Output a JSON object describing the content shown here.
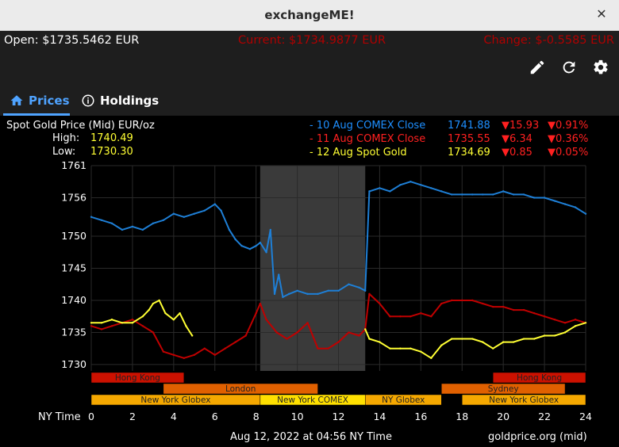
{
  "window": {
    "title": "exchangeME!",
    "close_glyph": "✕"
  },
  "summary": {
    "open": "Open: $1735.5462 EUR",
    "current": "Current: $1734.9877 EUR",
    "change": "Change: $-0.5585 EUR"
  },
  "toolbar": {
    "icons": [
      "edit-icon",
      "refresh-icon",
      "settings-icon"
    ]
  },
  "tabs": [
    {
      "label": "Prices",
      "icon": "home-icon",
      "active": true
    },
    {
      "label": "Holdings",
      "icon": "info-icon",
      "active": false
    }
  ],
  "colors": {
    "accent": "#4fa3ff",
    "blue_series": "#1e7fd6",
    "red_series": "#c00000",
    "yellow_series": "#ffff33",
    "negative": "#ff2020"
  },
  "chart_data": {
    "type": "line",
    "title": "Spot Gold Price (Mid) EUR/oz",
    "high_label": "High:",
    "high_value": "1740.49",
    "low_label": "Low:",
    "low_value": "1730.30",
    "xlabel": "NY Time",
    "footer_date": "Aug 12, 2022 at 04:56 NY Time",
    "footer_source": "goldprice.org (mid)",
    "xlim": [
      0,
      24
    ],
    "ylim": [
      1729,
      1761
    ],
    "x_ticks": [
      "0",
      "2",
      "4",
      "6",
      "8",
      "10",
      "12",
      "14",
      "16",
      "18",
      "20",
      "22",
      "24"
    ],
    "y_ticks": [
      "1761",
      "1756",
      "1750",
      "1745",
      "1740",
      "1735",
      "1730"
    ],
    "grid": true,
    "legend": [
      {
        "label": "- 10 Aug COMEX Close",
        "price": "1741.88",
        "change": "▼15.93",
        "pct": "▼0.91%",
        "color": "#1e8fff"
      },
      {
        "label": "- 11 Aug COMEX Close",
        "price": "1735.55",
        "change": "▼6.34",
        "pct": "▼0.36%",
        "color": "#ff2020"
      },
      {
        "label": "- 12 Aug Spot Gold",
        "price": "1734.69",
        "change": "▼0.85",
        "pct": "▼0.05%",
        "color": "#ffff33"
      }
    ],
    "shaded_range": [
      8.2,
      13.3
    ],
    "sessions": [
      {
        "name": "Hong Kong",
        "start": 0,
        "end": 4.5,
        "row": 0,
        "color": "#cc1100"
      },
      {
        "name": "Hong Kong",
        "start": 19.5,
        "end": 24,
        "row": 0,
        "color": "#cc1100"
      },
      {
        "name": "London",
        "start": 3.5,
        "end": 11,
        "row": 1,
        "color": "#e06000"
      },
      {
        "name": "Sydney",
        "start": 17,
        "end": 23,
        "row": 1,
        "color": "#e06000"
      },
      {
        "name": "New York Globex",
        "start": 0,
        "end": 8.2,
        "row": 2,
        "color": "#f5a800"
      },
      {
        "name": "New York COMEX",
        "start": 8.2,
        "end": 13.3,
        "row": 2,
        "color": "#ffe000"
      },
      {
        "name": "NY Globex",
        "start": 13.3,
        "end": 17,
        "row": 2,
        "color": "#f5a800"
      },
      {
        "name": "New York Globex",
        "start": 18,
        "end": 24,
        "row": 2,
        "color": "#f5a800"
      }
    ],
    "series": [
      {
        "name": "10 Aug COMEX Close",
        "color": "#1e7fd6",
        "x": [
          0,
          0.5,
          1,
          1.5,
          2,
          2.5,
          3,
          3.5,
          4,
          4.5,
          5,
          5.5,
          6,
          6.3,
          6.7,
          7,
          7.3,
          7.7,
          8,
          8.2,
          8.5,
          8.7,
          8.9,
          9.1,
          9.3,
          9.6,
          10,
          10.5,
          11,
          11.5,
          12,
          12.5,
          13,
          13.3,
          13.5,
          14,
          14.5,
          15,
          15.5,
          16,
          16.5,
          17,
          17.5,
          18,
          18.5,
          19,
          19.5,
          20,
          20.5,
          21,
          21.5,
          22,
          22.5,
          23,
          23.5,
          24
        ],
        "values": [
          1753,
          1752.5,
          1752,
          1751,
          1751.5,
          1751,
          1752,
          1752.5,
          1753.5,
          1753,
          1753.5,
          1754,
          1755,
          1754,
          1751,
          1749.5,
          1748.5,
          1748,
          1748.5,
          1749,
          1747.5,
          1751,
          1741,
          1744,
          1740.5,
          1741,
          1741.5,
          1741,
          1741,
          1741.5,
          1741.5,
          1742.5,
          1742,
          1741.5,
          1757,
          1757.5,
          1757,
          1758,
          1758.5,
          1758,
          1757.5,
          1757,
          1756.5,
          1756.5,
          1756.5,
          1756.5,
          1756.5,
          1757,
          1756.5,
          1756.5,
          1756,
          1756,
          1755.5,
          1755,
          1754.5,
          1753.5
        ]
      },
      {
        "name": "11 Aug COMEX Close",
        "color": "#c00000",
        "x": [
          0,
          0.5,
          1,
          1.5,
          2,
          2.5,
          3,
          3.5,
          4,
          4.5,
          5,
          5.5,
          6,
          6.5,
          7,
          7.5,
          8,
          8.2,
          8.5,
          9,
          9.5,
          10,
          10.5,
          11,
          11.5,
          12,
          12.5,
          13,
          13.3,
          13.5,
          14,
          14.5,
          15,
          15.5,
          16,
          16.5,
          17,
          17.5,
          18,
          18.5,
          19,
          19.5,
          20,
          20.5,
          21,
          21.5,
          22,
          22.5,
          23,
          23.5,
          24
        ],
        "values": [
          1736,
          1735.5,
          1736,
          1736.5,
          1737,
          1736,
          1735,
          1732,
          1731.5,
          1731,
          1731.5,
          1732.5,
          1731.5,
          1732.5,
          1733.5,
          1734.5,
          1738,
          1739.5,
          1737,
          1735,
          1734,
          1735,
          1736.5,
          1732.5,
          1732.5,
          1733.5,
          1735,
          1734.5,
          1735.5,
          1741,
          1739.5,
          1737.5,
          1737.5,
          1737.5,
          1738,
          1737.5,
          1739.5,
          1740,
          1740,
          1740,
          1739.5,
          1739,
          1739,
          1738.5,
          1738.5,
          1738,
          1737.5,
          1737,
          1736.5,
          1737,
          1736.5
        ]
      },
      {
        "name": "12 Aug Spot Gold",
        "color": "#ffff33",
        "x": [
          0,
          0.5,
          1,
          1.5,
          2,
          2.5,
          2.8,
          3,
          3.3,
          3.6,
          4,
          4.3,
          4.6,
          4.9,
          13.3,
          13.5,
          14,
          14.5,
          15,
          15.5,
          16,
          16.5,
          17,
          17.5,
          18,
          18.5,
          19,
          19.5,
          20,
          20.5,
          21,
          21.5,
          22,
          22.5,
          23,
          23.5,
          24
        ],
        "values": [
          1736.5,
          1736.5,
          1737,
          1736.5,
          1736.5,
          1737.5,
          1738.5,
          1739.5,
          1740,
          1738,
          1737,
          1738,
          1736,
          1734.5,
          1735.5,
          1734,
          1733.5,
          1732.5,
          1732.5,
          1732.5,
          1732,
          1731,
          1733,
          1734,
          1734,
          1734,
          1733.5,
          1732.5,
          1733.5,
          1733.5,
          1734,
          1734,
          1734.5,
          1734.5,
          1735,
          1736,
          1736.5
        ]
      }
    ]
  }
}
